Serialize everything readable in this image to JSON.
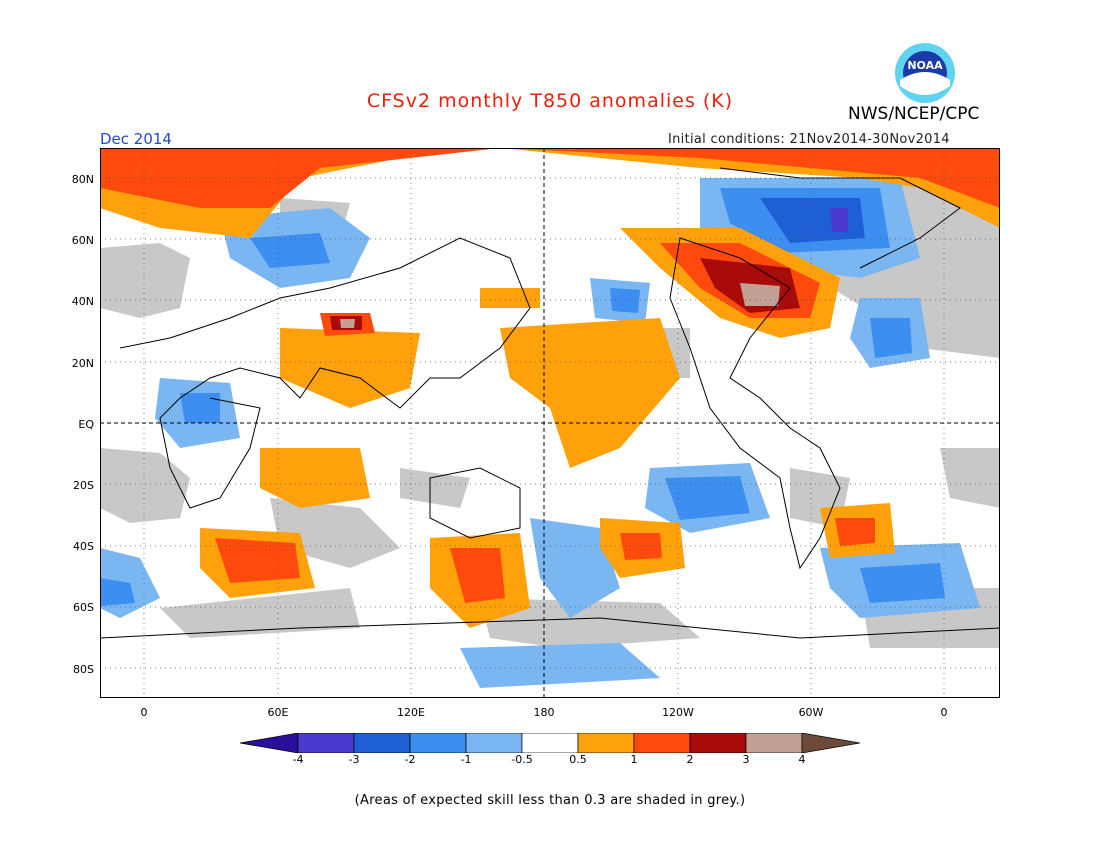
{
  "header": {
    "title": "CFSv2 monthly T850 anomalies (K)",
    "org": "NWS/NCEP/CPC",
    "logo_text": "NOAA",
    "month": "Dec 2014",
    "initial_conditions": "Initial conditions: 21Nov2014-30Nov2014"
  },
  "axes": {
    "lat_labels": [
      "80N",
      "60N",
      "40N",
      "20N",
      "EQ",
      "20S",
      "40S",
      "60S",
      "80S"
    ],
    "lon_labels": [
      "0",
      "60E",
      "120E",
      "180",
      "120W",
      "60W",
      "0"
    ]
  },
  "legend": {
    "labels": [
      "-4",
      "-3",
      "-2",
      "-1",
      "-0.5",
      "0.5",
      "1",
      "2",
      "3",
      "4"
    ],
    "colors": [
      "#2a0f9c",
      "#4a3bd0",
      "#1f5fd6",
      "#3c8ef0",
      "#79b6f2",
      "#ffffff",
      "#ffa10a",
      "#ff4a0e",
      "#a90a0a",
      "#c2a094",
      "#6e4a3a"
    ],
    "grey_color": "#c8c8c8"
  },
  "footnote": "(Areas of expected skill less than 0.3 are shaded in grey.)"
}
